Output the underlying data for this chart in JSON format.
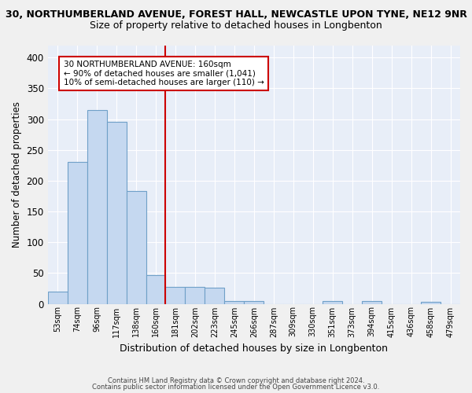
{
  "title_line1": "30, NORTHUMBERLAND AVENUE, FOREST HALL, NEWCASTLE UPON TYNE, NE12 9NR",
  "title_line2": "Size of property relative to detached houses in Longbenton",
  "xlabel": "Distribution of detached houses by size in Longbenton",
  "ylabel": "Number of detached properties",
  "bar_labels": [
    "53sqm",
    "74sqm",
    "96sqm",
    "117sqm",
    "138sqm",
    "160sqm",
    "181sqm",
    "202sqm",
    "223sqm",
    "245sqm",
    "266sqm",
    "287sqm",
    "309sqm",
    "330sqm",
    "351sqm",
    "373sqm",
    "394sqm",
    "415sqm",
    "436sqm",
    "458sqm",
    "479sqm"
  ],
  "bar_values": [
    20,
    230,
    315,
    295,
    183,
    46,
    28,
    27,
    26,
    4,
    4,
    0,
    0,
    0,
    4,
    0,
    4,
    0,
    0,
    3,
    0
  ],
  "bar_color": "#c5d8f0",
  "bar_edge_color": "#6fa0c8",
  "vline_color": "#cc0000",
  "annotation_text": "30 NORTHUMBERLAND AVENUE: 160sqm\n← 90% of detached houses are smaller (1,041)\n10% of semi-detached houses are larger (110) →",
  "annotation_box_color": "#ffffff",
  "annotation_box_edge_color": "#cc0000",
  "ylim": [
    0,
    420
  ],
  "yticks": [
    0,
    50,
    100,
    150,
    200,
    250,
    300,
    350,
    400
  ],
  "plot_bg_color": "#e8eef8",
  "fig_bg_color": "#f0f0f0",
  "grid_color": "#ffffff",
  "footer_line1": "Contains HM Land Registry data © Crown copyright and database right 2024.",
  "footer_line2": "Contains public sector information licensed under the Open Government Licence v3.0."
}
